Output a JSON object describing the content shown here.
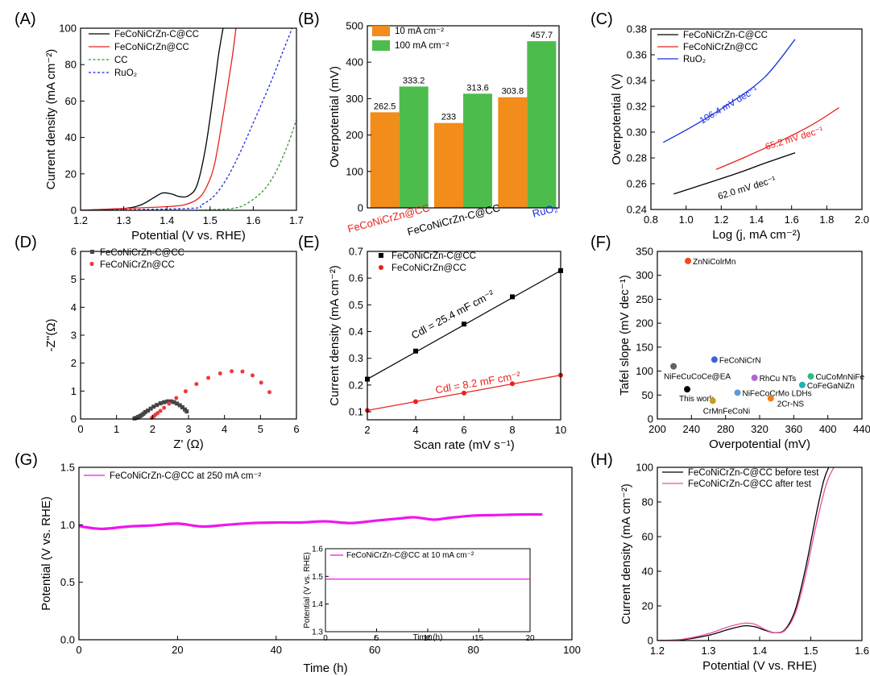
{
  "chart_data": [
    {
      "id": "A",
      "panel_label": "(A)",
      "type": "line",
      "xlabel": "Potential (V vs. RHE)",
      "ylabel": "Current density (mA cm⁻²)",
      "xlim": [
        1.2,
        1.7
      ],
      "ylim": [
        0,
        100
      ],
      "xticks": [
        1.2,
        1.3,
        1.4,
        1.5,
        1.6,
        1.7
      ],
      "yticks": [
        0,
        20,
        40,
        60,
        80,
        100
      ],
      "legend_position": "top-left",
      "series": [
        {
          "name": "FeCoNiCrZn-C@CC",
          "color": "#000000",
          "dash": "solid",
          "x": [
            1.2,
            1.3,
            1.34,
            1.37,
            1.39,
            1.41,
            1.43,
            1.45,
            1.47,
            1.49,
            1.51,
            1.52,
            1.53
          ],
          "y": [
            0,
            1,
            3,
            7,
            9.5,
            9,
            7.5,
            8,
            14,
            35,
            68,
            86,
            100
          ]
        },
        {
          "name": "FeCoNiCrZn@CC",
          "color": "#e8211d",
          "dash": "solid",
          "x": [
            1.2,
            1.3,
            1.4,
            1.44,
            1.47,
            1.49,
            1.51,
            1.53,
            1.55,
            1.56
          ],
          "y": [
            0,
            1,
            2,
            3,
            6,
            12,
            25,
            52,
            82,
            100
          ]
        },
        {
          "name": "CC",
          "color": "#2a9a2a",
          "dash": "dotted",
          "x": [
            1.2,
            1.45,
            1.5,
            1.55,
            1.58,
            1.62,
            1.65,
            1.68,
            1.7
          ],
          "y": [
            0,
            0,
            0.3,
            1,
            3,
            10,
            20,
            36,
            50
          ]
        },
        {
          "name": "RuO₂",
          "color": "#1a2ee0",
          "dash": "dotted",
          "x": [
            1.2,
            1.45,
            1.48,
            1.51,
            1.54,
            1.57,
            1.6,
            1.64,
            1.67,
            1.69
          ],
          "y": [
            0,
            1,
            3,
            8,
            18,
            32,
            48,
            70,
            88,
            100
          ]
        }
      ]
    },
    {
      "id": "B",
      "panel_label": "(B)",
      "type": "bar",
      "ylabel": "Overpotential (mV)",
      "ylim": [
        0,
        500
      ],
      "yticks": [
        0,
        100,
        200,
        300,
        400,
        500
      ],
      "legend_position": "top-left",
      "categories": [
        "FeCoNiCrZn@CC",
        "FeCoNiCrZn-C@CC",
        "RuO₂"
      ],
      "category_colors": [
        "#e8211d",
        "#000000",
        "#1a2ee0"
      ],
      "series": [
        {
          "name": "10 mA cm⁻²",
          "color": "#f28c1a",
          "values": [
            262.5,
            233,
            303.8
          ]
        },
        {
          "name": "100 mA cm⁻²",
          "color": "#4cbd4c",
          "values": [
            333.2,
            313.6,
            457.7
          ]
        }
      ],
      "value_labels": [
        [
          "262.5",
          "233",
          "303.8"
        ],
        [
          "333.2",
          "313.6",
          "457.7"
        ]
      ]
    },
    {
      "id": "C",
      "panel_label": "(C)",
      "type": "line",
      "xlabel": "Log (j, mA cm⁻²)",
      "ylabel": "Overpotential (V)",
      "xlim": [
        0.8,
        2.0
      ],
      "ylim": [
        0.24,
        0.38
      ],
      "xticks": [
        0.8,
        1.0,
        1.2,
        1.4,
        1.6,
        1.8,
        2.0
      ],
      "yticks": [
        0.24,
        0.26,
        0.28,
        0.3,
        0.32,
        0.34,
        0.36,
        0.38
      ],
      "legend_position": "top-left",
      "series": [
        {
          "name": "FeCoNiCrZn-C@CC",
          "color": "#000000",
          "x": [
            0.93,
            1.1,
            1.3,
            1.45,
            1.62
          ],
          "y": [
            0.252,
            0.2595,
            0.2685,
            0.276,
            0.284
          ]
        },
        {
          "name": "FeCoNiCrZn@CC",
          "color": "#e8211d",
          "x": [
            1.17,
            1.35,
            1.55,
            1.72,
            1.87
          ],
          "y": [
            0.271,
            0.2815,
            0.294,
            0.306,
            0.319
          ]
        },
        {
          "name": "RuO₂",
          "color": "#1a2ee0",
          "x": [
            0.87,
            1.05,
            1.25,
            1.45,
            1.62
          ],
          "y": [
            0.292,
            0.3055,
            0.3225,
            0.343,
            0.372
          ]
        }
      ],
      "annotations": [
        {
          "text": "106.4 mV dec⁻¹",
          "color": "#1a2ee0"
        },
        {
          "text": "65.2 mV dec⁻¹",
          "color": "#e8211d"
        },
        {
          "text": "62.0 mV dec⁻¹",
          "color": "#000000"
        }
      ]
    },
    {
      "id": "D",
      "panel_label": "(D)",
      "type": "scatter",
      "xlabel": "Z' (Ω)",
      "ylabel": "-Z''(Ω)",
      "xlim": [
        0,
        6
      ],
      "ylim": [
        0,
        6
      ],
      "xticks": [
        0,
        1,
        2,
        3,
        4,
        5,
        6
      ],
      "yticks": [
        0,
        1,
        2,
        3,
        4,
        5,
        6
      ],
      "legend_position": "top-left",
      "series": [
        {
          "name": "FeCoNiCrZn-C@CC",
          "color": "#444444",
          "marker": "square",
          "x": [
            1.5,
            1.55,
            1.6,
            1.65,
            1.7,
            1.75,
            1.8,
            1.87,
            1.95,
            2.03,
            2.12,
            2.22,
            2.32,
            2.42,
            2.52,
            2.6,
            2.68,
            2.76,
            2.83,
            2.9,
            2.95
          ],
          "y": [
            0.02,
            0.04,
            0.07,
            0.1,
            0.14,
            0.19,
            0.25,
            0.3,
            0.37,
            0.44,
            0.5,
            0.56,
            0.6,
            0.63,
            0.63,
            0.6,
            0.55,
            0.49,
            0.42,
            0.34,
            0.27
          ]
        },
        {
          "name": "FeCoNiCrZn@CC",
          "color": "#ee3a3a",
          "marker": "circle",
          "x": [
            1.98,
            2.03,
            2.08,
            2.14,
            2.22,
            2.32,
            2.46,
            2.66,
            2.92,
            3.22,
            3.55,
            3.88,
            4.2,
            4.5,
            4.78,
            5.02,
            5.25
          ],
          "y": [
            0.04,
            0.09,
            0.15,
            0.21,
            0.29,
            0.4,
            0.55,
            0.75,
            0.99,
            1.25,
            1.47,
            1.63,
            1.71,
            1.7,
            1.56,
            1.3,
            0.96
          ]
        }
      ]
    },
    {
      "id": "E",
      "panel_label": "(E)",
      "type": "scatter",
      "xlabel": "Scan rate (mV s⁻¹)",
      "ylabel": "Current density (mA cm⁻²)",
      "xlim": [
        2,
        10
      ],
      "ylim": [
        0.07,
        0.7
      ],
      "xticks": [
        2,
        4,
        6,
        8,
        10
      ],
      "yticks": [
        0.1,
        0.2,
        0.3,
        0.4,
        0.5,
        0.6,
        0.7
      ],
      "legend_position": "top-left",
      "series": [
        {
          "name": "FeCoNiCrZn-C@CC",
          "color": "#000000",
          "marker": "square",
          "x": [
            2,
            4,
            6,
            8,
            10
          ],
          "y": [
            0.222,
            0.327,
            0.428,
            0.53,
            0.628
          ]
        },
        {
          "name": "FeCoNiCrZn@CC",
          "color": "#e8211d",
          "marker": "circle",
          "x": [
            2,
            4,
            6,
            8,
            10
          ],
          "y": [
            0.105,
            0.138,
            0.17,
            0.205,
            0.237
          ]
        }
      ],
      "annotations": [
        {
          "text": "Cdl = 25.4 mF cm⁻²",
          "color": "#000000"
        },
        {
          "text": "Cdl = 8.2 mF cm⁻²",
          "color": "#e8211d"
        }
      ]
    },
    {
      "id": "F",
      "panel_label": "(F)",
      "type": "scatter",
      "xlabel": "Overpotential (mV)",
      "ylabel": "Tafel slope (mV dec⁻¹)",
      "xlim": [
        200,
        440
      ],
      "ylim": [
        0,
        350
      ],
      "xticks": [
        200,
        240,
        280,
        320,
        360,
        400,
        440
      ],
      "yticks": [
        0,
        50,
        100,
        150,
        200,
        250,
        300,
        350
      ],
      "points": [
        {
          "label": "ZnNiColrMn",
          "x": 236,
          "y": 330,
          "color": "#f04a1c"
        },
        {
          "label": "FeCoNiCrN",
          "x": 267,
          "y": 124,
          "color": "#3a63d8"
        },
        {
          "label": "NiFeCuCoCe@EA",
          "x": 219,
          "y": 110,
          "color": "#606060"
        },
        {
          "label": "RhCu NTs",
          "x": 314,
          "y": 86,
          "color": "#b066d6"
        },
        {
          "label": "CuCoMnNiFe",
          "x": 380,
          "y": 89,
          "color": "#2bbf7a"
        },
        {
          "label": "CoFeGaNiZn",
          "x": 370,
          "y": 71,
          "color": "#20b2b2"
        },
        {
          "label": "This work",
          "x": 235,
          "y": 62,
          "color": "#000000"
        },
        {
          "label": "NiFeCoCrMo LDHs",
          "x": 294,
          "y": 55,
          "color": "#5b9bd5"
        },
        {
          "label": "2Cr-NS",
          "x": 333,
          "y": 43,
          "color": "#f07f1c"
        },
        {
          "label": "CrMnFeCoNi",
          "x": 265,
          "y": 38,
          "color": "#c8a020"
        }
      ]
    },
    {
      "id": "G",
      "panel_label": "(G)",
      "type": "line",
      "xlabel": "Time (h)",
      "ylabel": "Potential (V vs. RHE)",
      "xlim": [
        0,
        100
      ],
      "ylim": [
        0,
        1.5
      ],
      "xticks": [
        0,
        20,
        40,
        60,
        80,
        100
      ],
      "yticks": [
        0.0,
        0.5,
        1.0,
        1.5
      ],
      "legend_position": "top-left",
      "series": [
        {
          "name": "FeCoNiCrZn-C@CC at 250 mA cm⁻²",
          "color": "#ee16ee",
          "x": [
            0,
            2,
            5,
            10,
            15,
            20,
            25,
            30,
            35,
            40,
            45,
            50,
            55,
            60,
            65,
            68,
            72,
            75,
            80,
            85,
            90,
            94
          ],
          "y": [
            0.99,
            0.975,
            0.965,
            0.985,
            0.995,
            1.01,
            0.985,
            1.0,
            1.015,
            1.02,
            1.02,
            1.03,
            1.015,
            1.035,
            1.055,
            1.065,
            1.045,
            1.06,
            1.08,
            1.085,
            1.09,
            1.09
          ]
        }
      ],
      "inset": {
        "xlabel": "Time (h)",
        "ylabel": "Potential (V vs. RHE)",
        "xlim": [
          0,
          20
        ],
        "ylim": [
          1.3,
          1.6
        ],
        "xticks": [
          0,
          5,
          10,
          15,
          20
        ],
        "yticks": [
          1.3,
          1.4,
          1.5,
          1.6
        ],
        "series": [
          {
            "name": "FeCoNiCrZn-C@CC at 10 mA cm⁻²",
            "color": "#ee16ee",
            "x": [
              0,
              20
            ],
            "y": [
              1.49,
              1.49
            ]
          }
        ]
      }
    },
    {
      "id": "H",
      "panel_label": "(H)",
      "type": "line",
      "xlabel": "Potential (V vs. RHE)",
      "ylabel": "Current density (mA cm⁻²)",
      "xlim": [
        1.2,
        1.6
      ],
      "ylim": [
        0,
        100
      ],
      "xticks": [
        1.2,
        1.3,
        1.4,
        1.5,
        1.6
      ],
      "yticks": [
        0,
        20,
        40,
        60,
        80,
        100
      ],
      "legend_position": "top-left",
      "series": [
        {
          "name": "FeCoNiCrZn-C@CC before test",
          "color": "#000000",
          "x": [
            1.2,
            1.25,
            1.3,
            1.34,
            1.37,
            1.39,
            1.41,
            1.43,
            1.45,
            1.47,
            1.49,
            1.51,
            1.525,
            1.535
          ],
          "y": [
            0,
            0.5,
            3,
            6.5,
            8.5,
            8,
            6,
            4.5,
            6.5,
            18,
            42,
            72,
            92,
            100
          ]
        },
        {
          "name": "FeCoNiCrZn-C@CC after test",
          "color": "#ee4ea0",
          "x": [
            1.2,
            1.25,
            1.3,
            1.34,
            1.37,
            1.39,
            1.41,
            1.43,
            1.45,
            1.47,
            1.49,
            1.51,
            1.53,
            1.545
          ],
          "y": [
            0,
            0.8,
            4,
            8,
            10,
            9.5,
            6.5,
            4.5,
            6,
            16,
            38,
            66,
            90,
            100
          ]
        }
      ]
    }
  ]
}
